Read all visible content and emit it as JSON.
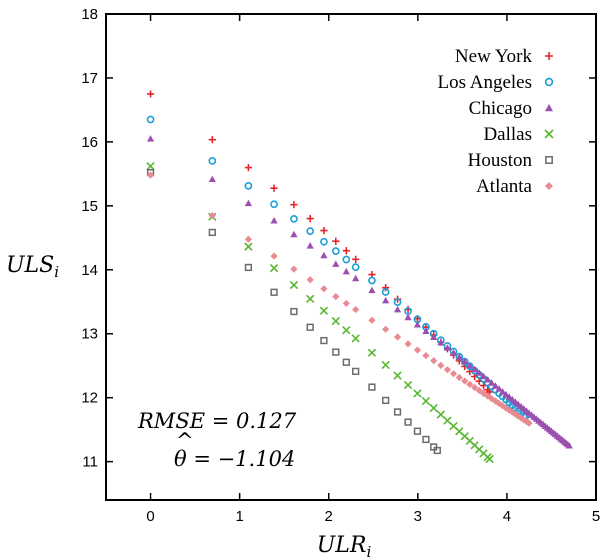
{
  "chart_data": {
    "type": "scatter",
    "title": "",
    "xlabel": "ULR",
    "xlabel_sub": "i",
    "ylabel": "ULS",
    "ylabel_sub": "i",
    "xlim": [
      -0.5,
      5
    ],
    "ylim": [
      10.4,
      18
    ],
    "xticks": [
      0,
      1,
      2,
      3,
      4,
      5
    ],
    "yticks": [
      11,
      12,
      13,
      14,
      15,
      16,
      17,
      18
    ],
    "grid": false,
    "legend_position": "top-right",
    "annotations": [
      {
        "text": "RMSE = 0.127"
      },
      {
        "text": "θ = −1.104",
        "accent": "^"
      }
    ],
    "series": [
      {
        "name": "New York",
        "marker": "plus",
        "color": "#e8242a",
        "y0": 16.75,
        "x_end": 3.8,
        "y_end": 12.1,
        "curve": 0.15
      },
      {
        "name": "Los Angeles",
        "marker": "circle",
        "color": "#1b9fd8",
        "y0": 16.35,
        "x_end": 4.2,
        "y_end": 11.7,
        "curve": 0.15
      },
      {
        "name": "Chicago",
        "marker": "triangle",
        "color": "#9b4fb0",
        "y0": 16.05,
        "x_end": 4.7,
        "y_end": 11.25,
        "curve": 0.1
      },
      {
        "name": "Dallas",
        "marker": "cross",
        "color": "#5ab734",
        "y0": 15.62,
        "x_end": 3.8,
        "y_end": 11.05,
        "curve": 0.05
      },
      {
        "name": "Houston",
        "marker": "square",
        "color": "#6b6b6b",
        "y0": 15.52,
        "x_end": 3.2,
        "y_end": 11.2,
        "curve": 0.0
      },
      {
        "name": "Atlanta",
        "marker": "diamond",
        "color": "#ea8a93",
        "y0": 15.48,
        "x_end": 4.25,
        "y_end": 11.6,
        "curve": 0.0
      }
    ]
  }
}
